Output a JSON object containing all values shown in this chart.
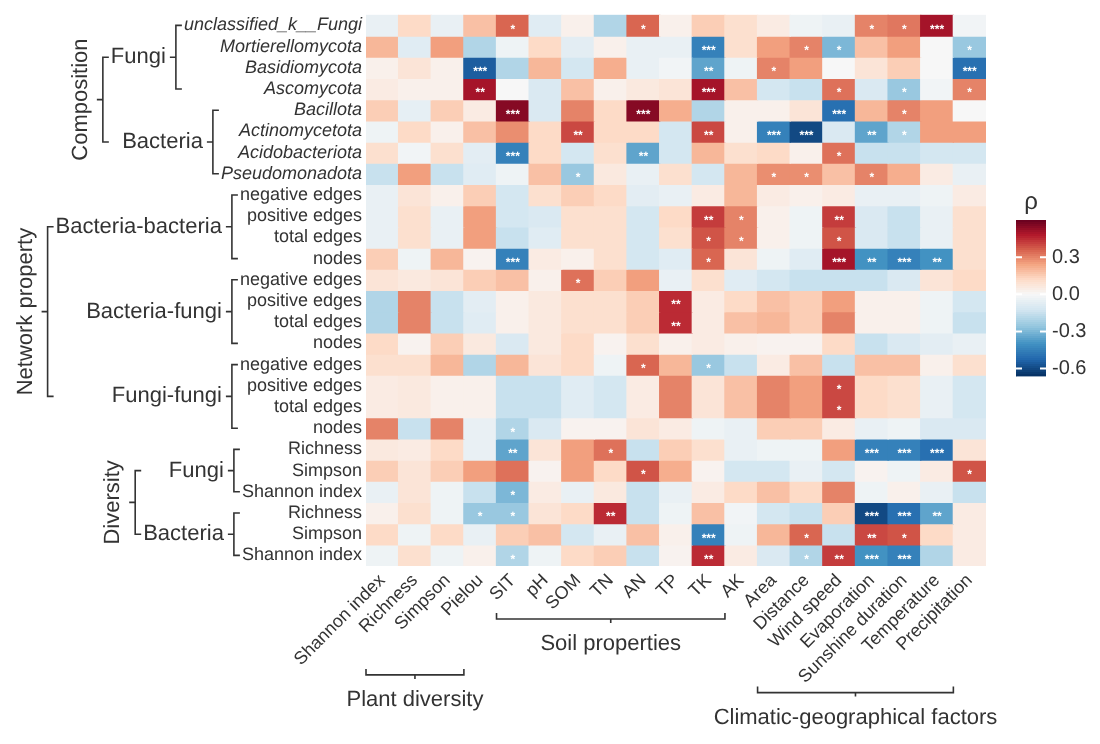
{
  "chart_data": {
    "type": "heatmap",
    "clabel": "ρ",
    "categories": [
      "Shannon index",
      "Richness",
      "Simpson",
      "Pielou",
      "SIT",
      "pH",
      "SOM",
      "TN",
      "AN",
      "TP",
      "TK",
      "AK",
      "Area",
      "Distance",
      "Wind speed",
      "Evaporation",
      "Sunshine duration",
      "Temperature",
      "Precipitation"
    ],
    "y_categories": [
      "unclassified_k__Fungi",
      "Mortierellomycota",
      "Basidiomycota",
      "Ascomycota",
      "Bacillota",
      "Actinomycetota",
      "Acidobacteriota",
      "Pseudomonadota",
      "negative edges",
      "positive edges",
      "total edges",
      "nodes",
      "negative edges",
      "positive edges",
      "total edges",
      "nodes",
      "negative edges",
      "positive edges",
      "total edges",
      "nodes",
      "Richness",
      "Simpson",
      "Shannon index",
      "Richness",
      "Simpson",
      "Shannon index"
    ],
    "cells": [
      [
        -0.05,
        0.12,
        -0.05,
        0.18,
        0.35,
        -0.08,
        0.03,
        -0.2,
        0.35,
        0.03,
        0.15,
        0.1,
        0.05,
        -0.03,
        -0.05,
        0.3,
        0.32,
        0.5,
        -0.02
      ],
      [
        0.2,
        -0.08,
        0.25,
        -0.2,
        -0.03,
        0.12,
        -0.07,
        0.03,
        -0.05,
        -0.05,
        -0.45,
        0.1,
        0.25,
        0.3,
        -0.3,
        0.18,
        0.25,
        0,
        -0.25
      ],
      [
        0.03,
        0.08,
        0.03,
        -0.55,
        -0.2,
        0.2,
        -0.12,
        0.22,
        -0.05,
        -0.02,
        -0.35,
        -0.03,
        0.3,
        0.25,
        0,
        0.08,
        0.15,
        0,
        -0.5
      ],
      [
        0.05,
        0.03,
        0.03,
        0.5,
        0,
        -0.1,
        0.18,
        0.03,
        0.06,
        0.08,
        0.5,
        0.18,
        -0.12,
        -0.15,
        0.33,
        -0.1,
        -0.25,
        -0.02,
        0.3
      ],
      [
        0.15,
        -0.06,
        0.15,
        0.05,
        0.55,
        -0.1,
        0.3,
        0.12,
        0.55,
        0.22,
        -0.2,
        0.03,
        0.03,
        0.08,
        -0.5,
        0.2,
        0.3,
        0.25,
        0
      ],
      [
        -0.03,
        0.12,
        0.03,
        0.18,
        0.28,
        0.12,
        0.4,
        0.12,
        0.12,
        -0.12,
        0.4,
        0.03,
        -0.45,
        -0.6,
        -0.1,
        -0.35,
        -0.2,
        0.25,
        0.25
      ],
      [
        0.1,
        -0.02,
        0.1,
        -0.07,
        -0.45,
        0.12,
        -0.12,
        0.1,
        -0.35,
        -0.12,
        0.2,
        0.1,
        0.12,
        0.03,
        0.33,
        -0.15,
        -0.15,
        -0.12,
        -0.12
      ],
      [
        -0.15,
        0.25,
        -0.15,
        -0.08,
        -0.03,
        0.18,
        -0.25,
        0.06,
        -0.05,
        0.1,
        -0.12,
        0.2,
        0.28,
        0.28,
        0.18,
        0.3,
        0.22,
        0.05,
        -0.05
      ],
      [
        -0.05,
        0.08,
        0.03,
        0.15,
        -0.12,
        0.1,
        0.15,
        0.12,
        -0.07,
        -0.05,
        0.05,
        0.2,
        0.05,
        0.03,
        0.05,
        -0.05,
        -0.05,
        -0.03,
        0.05
      ],
      [
        -0.05,
        0.1,
        -0.05,
        0.25,
        -0.12,
        -0.1,
        0.1,
        0.1,
        -0.12,
        0.12,
        0.42,
        0.3,
        0.03,
        -0.03,
        0.42,
        -0.1,
        -0.15,
        -0.05,
        0.1
      ],
      [
        -0.05,
        0.1,
        -0.05,
        0.25,
        -0.15,
        -0.08,
        0.1,
        0.1,
        -0.12,
        0.1,
        0.38,
        0.3,
        0.03,
        -0.03,
        0.38,
        -0.1,
        -0.15,
        -0.05,
        0.1
      ],
      [
        0.15,
        -0.03,
        0.2,
        0.02,
        -0.45,
        0.05,
        0.03,
        0.1,
        -0.12,
        -0.08,
        0.35,
        0.08,
        -0.03,
        -0.08,
        0.5,
        -0.4,
        -0.45,
        -0.4,
        0.1
      ],
      [
        0.08,
        0.06,
        0.08,
        0.15,
        0.18,
        0.03,
        0.33,
        0.15,
        0.25,
        -0.05,
        0.1,
        -0.08,
        -0.12,
        -0.15,
        -0.15,
        -0.15,
        -0.1,
        0.08,
        0.12
      ],
      [
        -0.2,
        0.3,
        -0.15,
        -0.07,
        0.03,
        0.06,
        0.1,
        0.1,
        0.15,
        0.45,
        0.05,
        0.12,
        0.18,
        0.15,
        0.25,
        0.03,
        0.03,
        -0.03,
        -0.12
      ],
      [
        -0.2,
        0.3,
        -0.15,
        -0.08,
        0.03,
        0.06,
        0.1,
        0.1,
        0.15,
        0.45,
        0.05,
        0.18,
        0.2,
        0.15,
        0.3,
        0.03,
        0.03,
        -0.03,
        -0.15
      ],
      [
        0.12,
        0.02,
        0.15,
        0.06,
        -0.1,
        0.06,
        0.12,
        0.02,
        0.1,
        0.03,
        0.05,
        0.03,
        0.02,
        0.02,
        0.12,
        -0.15,
        -0.1,
        -0.07,
        -0.05
      ],
      [
        0.1,
        0.1,
        0.2,
        -0.2,
        0.2,
        0.08,
        0.12,
        -0.03,
        0.35,
        0.2,
        -0.25,
        -0.15,
        0.05,
        0.18,
        -0.15,
        0.18,
        0.18,
        0.03,
        0.1
      ],
      [
        0.05,
        0.06,
        0.03,
        0.03,
        -0.15,
        -0.15,
        -0.08,
        -0.12,
        0.05,
        0.3,
        0.08,
        0.18,
        0.3,
        0.25,
        0.4,
        0.12,
        0.1,
        -0.05,
        -0.12
      ],
      [
        0.05,
        0.06,
        0.03,
        0.03,
        -0.15,
        -0.15,
        -0.08,
        -0.12,
        0.05,
        0.3,
        0.08,
        0.18,
        0.3,
        0.25,
        0.4,
        0.12,
        0.1,
        -0.05,
        -0.12
      ],
      [
        0.3,
        -0.15,
        0.3,
        -0.05,
        -0.2,
        -0.1,
        0.02,
        0.02,
        0.08,
        0.05,
        -0.03,
        -0.05,
        0.15,
        0.15,
        0.05,
        -0.05,
        -0.03,
        -0.1,
        -0.1
      ],
      [
        0.06,
        0.05,
        0.12,
        -0.05,
        -0.35,
        0.08,
        0.25,
        0.33,
        -0.15,
        0.15,
        0.1,
        -0.05,
        -0.03,
        -0.03,
        0.25,
        -0.45,
        -0.45,
        -0.5,
        0.08
      ],
      [
        0.15,
        0.08,
        0.15,
        0.25,
        0.33,
        0.02,
        0.25,
        0.12,
        0.38,
        0.22,
        0.02,
        -0.12,
        -0.12,
        -0.05,
        -0.12,
        0.02,
        -0.03,
        0.05,
        0.38
      ],
      [
        -0.05,
        0.08,
        -0.03,
        -0.15,
        -0.3,
        0.05,
        -0.05,
        0.06,
        -0.15,
        -0.05,
        0.05,
        0.12,
        0.18,
        0.12,
        0.3,
        -0.03,
        0.03,
        -0.05,
        -0.15
      ],
      [
        0.03,
        0.1,
        -0.03,
        -0.25,
        -0.25,
        0.08,
        0.12,
        0.45,
        -0.15,
        -0.03,
        0.18,
        -0.02,
        -0.12,
        -0.15,
        0.15,
        -0.6,
        -0.5,
        -0.35,
        0.05
      ],
      [
        0.12,
        -0.03,
        0.12,
        -0.05,
        0.15,
        0.18,
        -0.12,
        -0.05,
        0.18,
        0.03,
        -0.45,
        -0.03,
        0.2,
        0.35,
        -0.15,
        0.4,
        0.38,
        0.12,
        0.05
      ],
      [
        -0.03,
        0.1,
        -0.03,
        0.03,
        -0.2,
        -0.03,
        0.12,
        0.15,
        -0.15,
        0.02,
        0.45,
        0.05,
        -0.1,
        -0.2,
        0.42,
        -0.4,
        -0.45,
        -0.2,
        0.05
      ]
    ],
    "cell_labels": [
      [
        null,
        null,
        null,
        null,
        "*",
        null,
        null,
        null,
        "*",
        null,
        null,
        null,
        null,
        null,
        null,
        "*",
        "*",
        "***",
        null
      ],
      [
        null,
        null,
        null,
        null,
        null,
        null,
        null,
        null,
        null,
        null,
        "***",
        null,
        null,
        "*",
        "*",
        null,
        null,
        null,
        "*"
      ],
      [
        null,
        null,
        null,
        "***",
        null,
        null,
        null,
        null,
        null,
        null,
        "**",
        null,
        "*",
        null,
        null,
        null,
        null,
        null,
        "***"
      ],
      [
        null,
        null,
        null,
        "**",
        null,
        null,
        null,
        null,
        null,
        null,
        "***",
        null,
        null,
        null,
        "*",
        null,
        "*",
        null,
        "*"
      ],
      [
        null,
        null,
        null,
        null,
        "***",
        null,
        null,
        null,
        "***",
        null,
        null,
        null,
        null,
        null,
        "***",
        null,
        "*",
        null,
        null
      ],
      [
        null,
        null,
        null,
        null,
        null,
        null,
        "**",
        null,
        null,
        null,
        "**",
        null,
        "***",
        "***",
        null,
        "**",
        "*",
        null,
        null
      ],
      [
        null,
        null,
        null,
        null,
        "***",
        null,
        null,
        null,
        "**",
        null,
        null,
        null,
        null,
        null,
        "*",
        null,
        null,
        null,
        null
      ],
      [
        null,
        null,
        null,
        null,
        null,
        null,
        "*",
        null,
        null,
        null,
        null,
        null,
        "*",
        "*",
        null,
        "*",
        null,
        null,
        null
      ],
      [
        null,
        null,
        null,
        null,
        null,
        null,
        null,
        null,
        null,
        null,
        null,
        null,
        null,
        null,
        null,
        null,
        null,
        null,
        null
      ],
      [
        null,
        null,
        null,
        null,
        null,
        null,
        null,
        null,
        null,
        null,
        "**",
        "*",
        null,
        null,
        "**",
        null,
        null,
        null,
        null
      ],
      [
        null,
        null,
        null,
        null,
        null,
        null,
        null,
        null,
        null,
        null,
        "*",
        "*",
        null,
        null,
        "*",
        null,
        null,
        null,
        null
      ],
      [
        null,
        null,
        null,
        null,
        "***",
        null,
        null,
        null,
        null,
        null,
        "*",
        null,
        null,
        null,
        "***",
        "**",
        "***",
        "**",
        null
      ],
      [
        null,
        null,
        null,
        null,
        null,
        null,
        "*",
        null,
        null,
        null,
        null,
        null,
        null,
        null,
        null,
        null,
        null,
        null,
        null
      ],
      [
        null,
        null,
        null,
        null,
        null,
        null,
        null,
        null,
        null,
        "**",
        null,
        null,
        null,
        null,
        null,
        null,
        null,
        null,
        null
      ],
      [
        null,
        null,
        null,
        null,
        null,
        null,
        null,
        null,
        null,
        "**",
        null,
        null,
        null,
        null,
        null,
        null,
        null,
        null,
        null
      ],
      [
        null,
        null,
        null,
        null,
        null,
        null,
        null,
        null,
        null,
        null,
        null,
        null,
        null,
        null,
        null,
        null,
        null,
        null,
        null
      ],
      [
        null,
        null,
        null,
        null,
        null,
        null,
        null,
        null,
        "*",
        null,
        "*",
        null,
        null,
        null,
        null,
        null,
        null,
        null,
        null
      ],
      [
        null,
        null,
        null,
        null,
        null,
        null,
        null,
        null,
        null,
        null,
        null,
        null,
        null,
        null,
        "*",
        null,
        null,
        null,
        null
      ],
      [
        null,
        null,
        null,
        null,
        null,
        null,
        null,
        null,
        null,
        null,
        null,
        null,
        null,
        null,
        "*",
        null,
        null,
        null,
        null
      ],
      [
        null,
        null,
        null,
        null,
        "*",
        null,
        null,
        null,
        null,
        null,
        null,
        null,
        null,
        null,
        null,
        null,
        null,
        null,
        null
      ],
      [
        null,
        null,
        null,
        null,
        "**",
        null,
        null,
        "*",
        null,
        null,
        null,
        null,
        null,
        null,
        null,
        "***",
        "***",
        "***",
        null
      ],
      [
        null,
        null,
        null,
        null,
        null,
        null,
        null,
        null,
        "*",
        null,
        null,
        null,
        null,
        null,
        null,
        null,
        null,
        null,
        "*"
      ],
      [
        null,
        null,
        null,
        null,
        "*",
        null,
        null,
        null,
        null,
        null,
        null,
        null,
        null,
        null,
        null,
        null,
        null,
        null,
        null
      ],
      [
        null,
        null,
        null,
        "*",
        "*",
        null,
        null,
        "**",
        null,
        null,
        null,
        null,
        null,
        null,
        null,
        "***",
        "***",
        "**",
        null
      ],
      [
        null,
        null,
        null,
        null,
        null,
        null,
        null,
        null,
        null,
        null,
        "***",
        null,
        null,
        "*",
        null,
        "**",
        "*",
        null,
        null
      ],
      [
        null,
        null,
        null,
        null,
        "*",
        null,
        null,
        null,
        null,
        null,
        "**",
        null,
        null,
        "*",
        "**",
        "***",
        "***",
        null,
        null
      ]
    ],
    "clim": [
      -0.66,
      0.6
    ],
    "cticks": [
      0.3,
      {
        "value": 0,
        "label": "0.0"
      },
      -0.3,
      -0.6
    ],
    "annotations": [
      "Composition",
      "Fungi",
      "Bacteria",
      "Network property",
      "Bacteria-bacteria",
      "Bacteria-fungi",
      "Fungi-fungi",
      "Diversity",
      "Fungi",
      "Bacteria",
      "Plant diversity",
      "Soil properties",
      "Climatic-geographical factors"
    ]
  }
}
